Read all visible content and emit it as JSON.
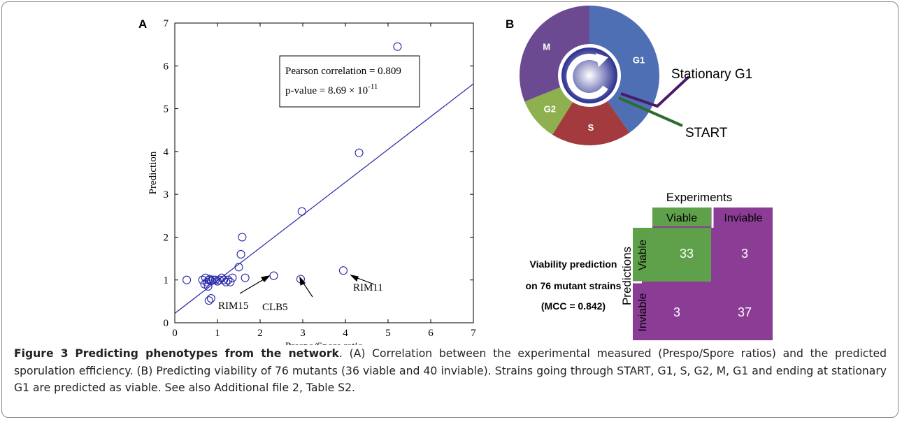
{
  "chart_data": {
    "type": "scatter",
    "panel": "A",
    "xlabel": "Prespo/Spore ratio",
    "ylabel": "Prediction",
    "xlim": [
      0,
      7
    ],
    "ylim": [
      0,
      7
    ],
    "xticks": [
      0,
      1,
      2,
      3,
      4,
      5,
      6,
      7
    ],
    "yticks": [
      0,
      1,
      2,
      3,
      4,
      5,
      6,
      7
    ],
    "series": [
      {
        "color": "#2626a8",
        "x": [
          0.28,
          0.65,
          0.7,
          0.72,
          0.75,
          0.78,
          0.8,
          0.82,
          0.85,
          0.9,
          0.95,
          1.0,
          1.05,
          1.1,
          1.15,
          1.2,
          1.25,
          1.3,
          1.35,
          0.8,
          0.85,
          1.5,
          1.55,
          1.58,
          1.65,
          2.32,
          2.95,
          2.98,
          3.95,
          4.32,
          5.22
        ],
        "values": [
          1.0,
          1.0,
          0.9,
          1.05,
          0.95,
          0.85,
          1.0,
          1.02,
          0.98,
          1.0,
          1.0,
          0.97,
          1.0,
          1.05,
          1.0,
          0.95,
          1.0,
          0.95,
          1.05,
          0.52,
          0.57,
          1.3,
          1.6,
          2.0,
          1.05,
          1.1,
          1.02,
          2.6,
          1.22,
          3.97,
          6.45
        ]
      }
    ],
    "fit_line": {
      "color": "#2626a8",
      "x": [
        0,
        7
      ],
      "y": [
        0.22,
        5.58
      ]
    },
    "stats": {
      "correlation": "Pearson correlation = 0.809",
      "pvalue": "p-value = 8.69 × 10",
      "pvalue_exp": "-11"
    },
    "annotations": [
      "RIM15",
      "CLB5",
      "RIM11"
    ]
  },
  "diagram": {
    "panel": "B",
    "cycle": [
      "G1",
      "S",
      "G2",
      "M"
    ],
    "checkpoints": [
      "Stationary G1",
      "START"
    ],
    "matrix": {
      "title": "Experiments",
      "side": "Predictions",
      "columns": [
        "Viable",
        "Inviable"
      ],
      "rows": [
        "Viable",
        "Inviable"
      ],
      "cells": [
        [
          33,
          3
        ],
        [
          3,
          37
        ]
      ]
    },
    "note": [
      "Viability prediction",
      "on 76 mutant strains",
      "(MCC = 0.842)"
    ]
  },
  "caption": {
    "label": "Figure 3",
    "title": "Predicting phenotypes from the network",
    "text": ". (A) Correlation between the experimental measured (Prespo/Spore ratios) and the predicted sporulation efficiency. (B) Predicting viability of 76 mutants (36 viable and 40 inviable). Strains going through START, G1, S, G2, M, G1 and ending at stationary G1 are predicted as viable. See also Additional file 2, Table S2."
  }
}
